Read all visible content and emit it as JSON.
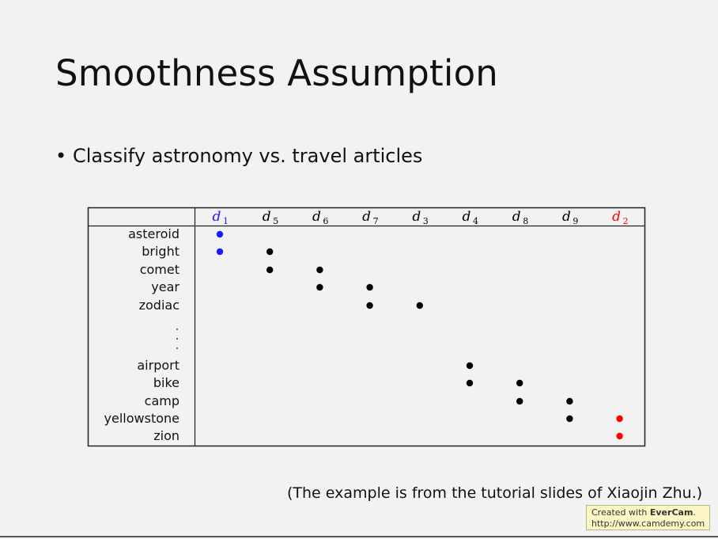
{
  "slide": {
    "title": "Smoothness Assumption",
    "bullet": "Classify astronomy vs. travel articles",
    "citation": "(The example is from the tutorial slides of Xiaojin Zhu.)"
  },
  "matrix": {
    "columns": [
      {
        "label": "d",
        "sub": "1",
        "color": "#1a1aff"
      },
      {
        "label": "d",
        "sub": "5",
        "color": "#000000"
      },
      {
        "label": "d",
        "sub": "6",
        "color": "#000000"
      },
      {
        "label": "d",
        "sub": "7",
        "color": "#000000"
      },
      {
        "label": "d",
        "sub": "3",
        "color": "#000000"
      },
      {
        "label": "d",
        "sub": "4",
        "color": "#000000"
      },
      {
        "label": "d",
        "sub": "8",
        "color": "#000000"
      },
      {
        "label": "d",
        "sub": "9",
        "color": "#000000"
      },
      {
        "label": "d",
        "sub": "2",
        "color": "#ff0000"
      }
    ],
    "rows": [
      {
        "word": "asteroid",
        "cols": [
          0
        ]
      },
      {
        "word": "bright",
        "cols": [
          0,
          1
        ]
      },
      {
        "word": "comet",
        "cols": [
          1,
          2
        ]
      },
      {
        "word": "year",
        "cols": [
          2,
          3
        ]
      },
      {
        "word": "zodiac",
        "cols": [
          3,
          4
        ]
      },
      {
        "word": "",
        "ellipsis": true,
        "cols": []
      },
      {
        "word": "airport",
        "cols": [
          5
        ]
      },
      {
        "word": "bike",
        "cols": [
          5,
          6
        ]
      },
      {
        "word": "camp",
        "cols": [
          6,
          7
        ]
      },
      {
        "word": "yellowstone",
        "cols": [
          7,
          8
        ]
      },
      {
        "word": "zion",
        "cols": [
          8
        ]
      }
    ]
  },
  "watermark": {
    "prefix": "Created with ",
    "brand": "EverCam",
    "suffix": ".",
    "url": "http://www.camdemy.com",
    "bg": "#fbf6c4"
  }
}
